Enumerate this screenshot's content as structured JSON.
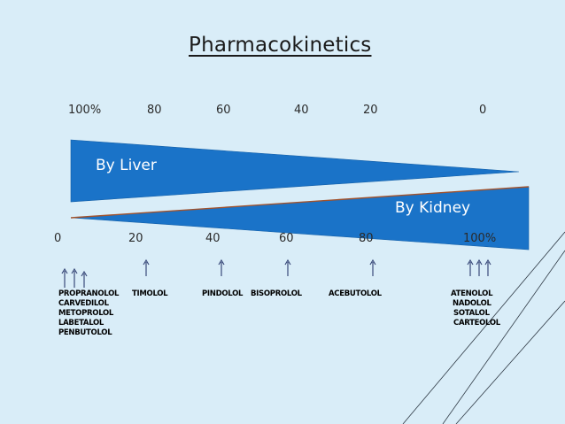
{
  "title": "Pharmacokinetics",
  "liver_scale": [
    "100%",
    "80",
    "60",
    "40",
    "20",
    "0"
  ],
  "kidney_scale": [
    "0",
    "20",
    "40",
    "60",
    "80",
    "100%"
  ],
  "bands": {
    "liver": "By Liver",
    "kidney": "By Kidney",
    "fill_color": "#1a73c8",
    "edge_color": "#a0522d"
  },
  "drugs": {
    "group_0": [
      "PROPRANOLOL",
      "CARVEDILOL",
      "METOPROLOL",
      "LABETALOL",
      "PENBUTOLOL"
    ],
    "group_20": [
      "TIMOLOL"
    ],
    "group_40": [
      "PINDOLOL"
    ],
    "group_60": [
      "BISOPROLOL"
    ],
    "group_80": [
      "ACEBUTOLOL"
    ],
    "group_100": [
      "ATENOLOL",
      "NADOLOL",
      "SOTALOL",
      "CARTEOLOL"
    ]
  }
}
